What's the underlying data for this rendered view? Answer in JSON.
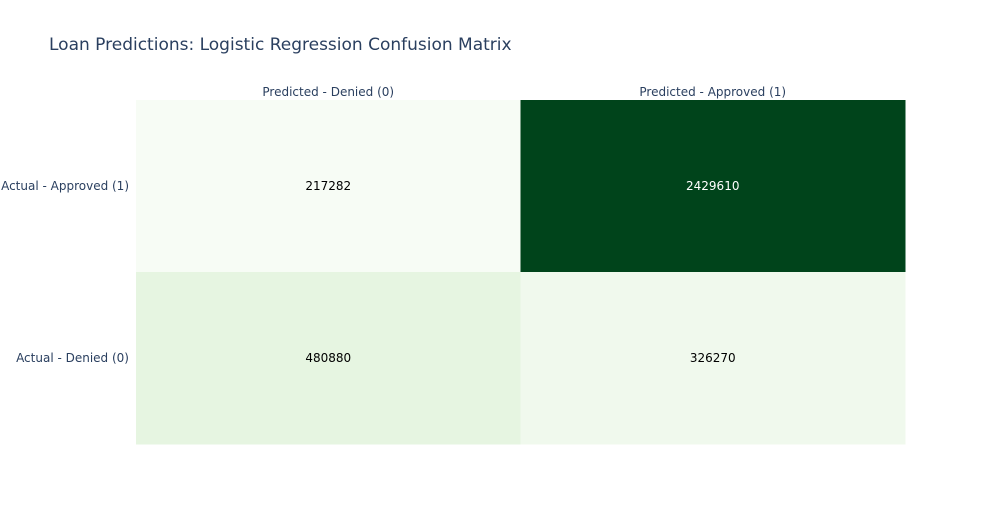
{
  "chart_data": {
    "type": "heatmap",
    "title": "Loan Predictions: Logistic Regression Confusion Matrix",
    "x_categories": [
      "Predicted - Denied (0)",
      "Predicted - Approved (1)"
    ],
    "y_categories": [
      "Actual - Approved (1)",
      "Actual - Denied (0)"
    ],
    "z": [
      [
        217282,
        2429610
      ],
      [
        480880,
        326270
      ]
    ],
    "z_labels": [
      [
        "217282",
        "2429610"
      ],
      [
        "480880",
        "326270"
      ]
    ],
    "colorscale": "Greens",
    "colors": {
      "low": "#f7fcf5",
      "high": "#00441b",
      "title": "#2a3f5f",
      "axis_text": "#2a3f5f",
      "label_dark": "#000000",
      "label_light": "#ffffff"
    },
    "x_axis_side": "top",
    "colorbar": false,
    "grid": false
  }
}
